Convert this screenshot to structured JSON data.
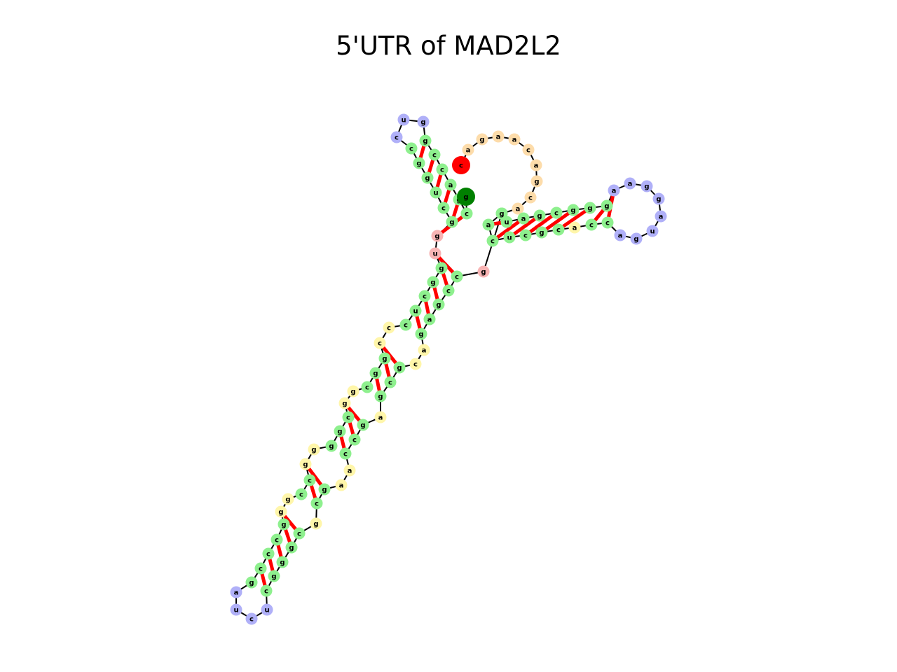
{
  "title": "5'UTR of MAD2L2",
  "colors": {
    "stem": "#8ef08e",
    "hairpin_loop": "#b0b0f8",
    "internal_loop": "#fff6aa",
    "multiloop": "#f8b4b4",
    "exterior": "#fddcaa",
    "pair_bond": "#ff0000",
    "backbone": "#000000",
    "five_prime": "#ff0000",
    "three_prime": "#008000"
  },
  "nucleotides": [
    {
      "base": "c",
      "type": "five_prime"
    },
    {
      "base": "a",
      "type": "exterior"
    },
    {
      "base": "g",
      "type": "exterior"
    },
    {
      "base": "a",
      "type": "exterior"
    },
    {
      "base": "a",
      "type": "exterior"
    },
    {
      "base": "c",
      "type": "exterior"
    },
    {
      "base": "a",
      "type": "exterior"
    },
    {
      "base": "g",
      "type": "exterior"
    },
    {
      "base": "c",
      "type": "exterior"
    },
    {
      "base": "a",
      "type": "exterior"
    },
    {
      "base": "c",
      "type": "stem"
    },
    {
      "base": "a",
      "type": "stem"
    },
    {
      "base": "c",
      "type": "stem"
    },
    {
      "base": "u",
      "type": "stem"
    },
    {
      "base": "c",
      "type": "stem"
    },
    {
      "base": "g",
      "type": "stem"
    },
    {
      "base": "c",
      "type": "stem"
    },
    {
      "base": "a",
      "type": "internal_loop"
    },
    {
      "base": "c",
      "type": "stem"
    },
    {
      "base": "c",
      "type": "stem"
    },
    {
      "base": "a",
      "type": "hairpin_loop"
    },
    {
      "base": "g",
      "type": "hairpin_loop"
    },
    {
      "base": "u",
      "type": "hairpin_loop"
    },
    {
      "base": "a",
      "type": "hairpin_loop"
    },
    {
      "base": "g",
      "type": "hairpin_loop"
    },
    {
      "base": "g",
      "type": "hairpin_loop"
    },
    {
      "base": "a",
      "type": "hairpin_loop"
    },
    {
      "base": "a",
      "type": "hairpin_loop"
    },
    {
      "base": "g",
      "type": "stem"
    },
    {
      "base": "g",
      "type": "stem"
    },
    {
      "base": "g",
      "type": "stem"
    },
    {
      "base": "c",
      "type": "stem"
    },
    {
      "base": "g",
      "type": "stem"
    },
    {
      "base": "a",
      "type": "stem"
    },
    {
      "base": "u",
      "type": "stem"
    },
    {
      "base": "g",
      "type": "stem"
    },
    {
      "base": "g",
      "type": "multiloop"
    },
    {
      "base": "c",
      "type": "stem"
    },
    {
      "base": "c",
      "type": "stem"
    },
    {
      "base": "g",
      "type": "stem"
    },
    {
      "base": "a",
      "type": "stem"
    },
    {
      "base": "g",
      "type": "stem"
    },
    {
      "base": "a",
      "type": "internal_loop"
    },
    {
      "base": "c",
      "type": "internal_loop"
    },
    {
      "base": "g",
      "type": "stem"
    },
    {
      "base": "c",
      "type": "stem"
    },
    {
      "base": "g",
      "type": "stem"
    },
    {
      "base": "a",
      "type": "internal_loop"
    },
    {
      "base": "g",
      "type": "stem"
    },
    {
      "base": "c",
      "type": "stem"
    },
    {
      "base": "c",
      "type": "stem"
    },
    {
      "base": "a",
      "type": "internal_loop"
    },
    {
      "base": "a",
      "type": "internal_loop"
    },
    {
      "base": "g",
      "type": "stem"
    },
    {
      "base": "c",
      "type": "stem"
    },
    {
      "base": "g",
      "type": "internal_loop"
    },
    {
      "base": "c",
      "type": "stem"
    },
    {
      "base": "g",
      "type": "stem"
    },
    {
      "base": "g",
      "type": "stem"
    },
    {
      "base": "g",
      "type": "stem"
    },
    {
      "base": "c",
      "type": "stem"
    },
    {
      "base": "u",
      "type": "hairpin_loop"
    },
    {
      "base": "c",
      "type": "hairpin_loop"
    },
    {
      "base": "u",
      "type": "hairpin_loop"
    },
    {
      "base": "a",
      "type": "hairpin_loop"
    },
    {
      "base": "g",
      "type": "stem"
    },
    {
      "base": "c",
      "type": "stem"
    },
    {
      "base": "c",
      "type": "stem"
    },
    {
      "base": "c",
      "type": "stem"
    },
    {
      "base": "g",
      "type": "stem"
    },
    {
      "base": "g",
      "type": "internal_loop"
    },
    {
      "base": "g",
      "type": "internal_loop"
    },
    {
      "base": "c",
      "type": "stem"
    },
    {
      "base": "c",
      "type": "stem"
    },
    {
      "base": "g",
      "type": "internal_loop"
    },
    {
      "base": "g",
      "type": "internal_loop"
    },
    {
      "base": "g",
      "type": "stem"
    },
    {
      "base": "g",
      "type": "stem"
    },
    {
      "base": "c",
      "type": "stem"
    },
    {
      "base": "g",
      "type": "internal_loop"
    },
    {
      "base": "g",
      "type": "internal_loop"
    },
    {
      "base": "c",
      "type": "stem"
    },
    {
      "base": "g",
      "type": "stem"
    },
    {
      "base": "g",
      "type": "stem"
    },
    {
      "base": "c",
      "type": "internal_loop"
    },
    {
      "base": "c",
      "type": "internal_loop"
    },
    {
      "base": "c",
      "type": "stem"
    },
    {
      "base": "u",
      "type": "stem"
    },
    {
      "base": "c",
      "type": "stem"
    },
    {
      "base": "g",
      "type": "stem"
    },
    {
      "base": "g",
      "type": "stem"
    },
    {
      "base": "u",
      "type": "multiloop"
    },
    {
      "base": "g",
      "type": "multiloop"
    },
    {
      "base": "g",
      "type": "stem"
    },
    {
      "base": "c",
      "type": "stem"
    },
    {
      "base": "u",
      "type": "stem"
    },
    {
      "base": "g",
      "type": "stem"
    },
    {
      "base": "g",
      "type": "stem"
    },
    {
      "base": "c",
      "type": "stem"
    },
    {
      "base": "c",
      "type": "hairpin_loop"
    },
    {
      "base": "u",
      "type": "hairpin_loop"
    },
    {
      "base": "g",
      "type": "hairpin_loop"
    },
    {
      "base": "g",
      "type": "stem"
    },
    {
      "base": "c",
      "type": "stem"
    },
    {
      "base": "c",
      "type": "stem"
    },
    {
      "base": "a",
      "type": "stem"
    },
    {
      "base": "g",
      "type": "stem"
    },
    {
      "base": "c",
      "type": "stem"
    },
    {
      "base": "g",
      "type": "three_prime"
    }
  ]
}
